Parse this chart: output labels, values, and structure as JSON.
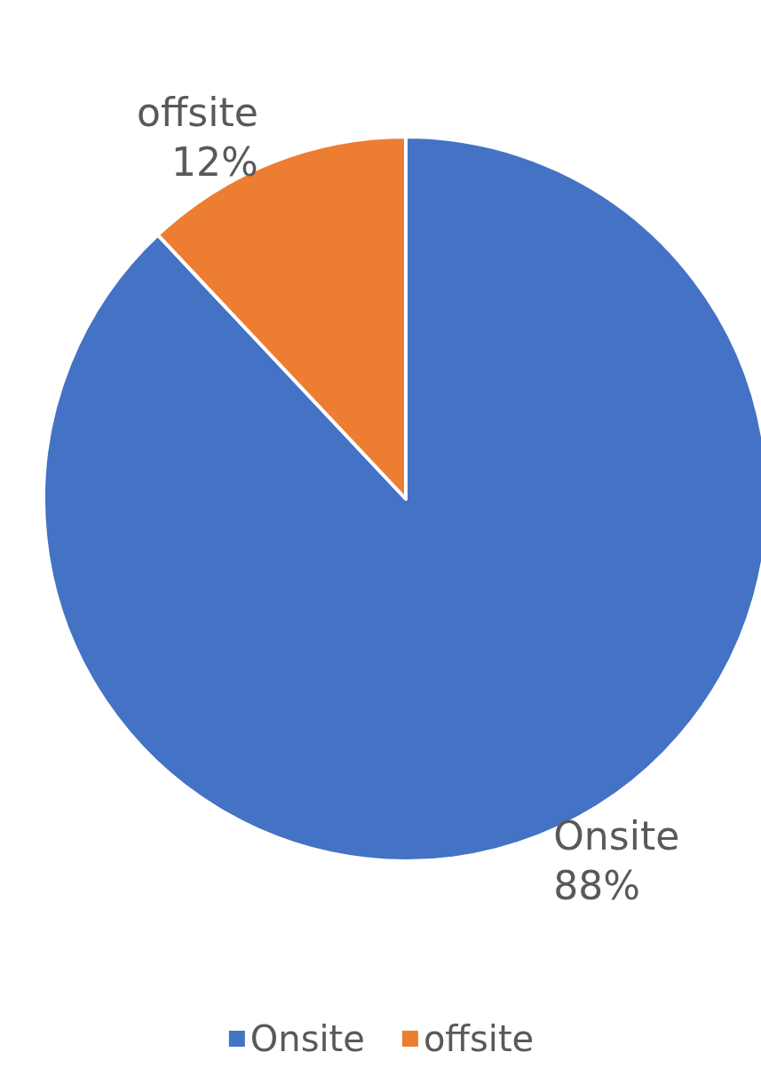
{
  "chart_data": {
    "type": "pie",
    "categories": [
      "Onsite",
      "offsite"
    ],
    "values": [
      88,
      12
    ],
    "colors": [
      "#4472c4",
      "#ed7d31"
    ],
    "value_labels": [
      "88%",
      "12%"
    ],
    "legend": "bottom"
  }
}
